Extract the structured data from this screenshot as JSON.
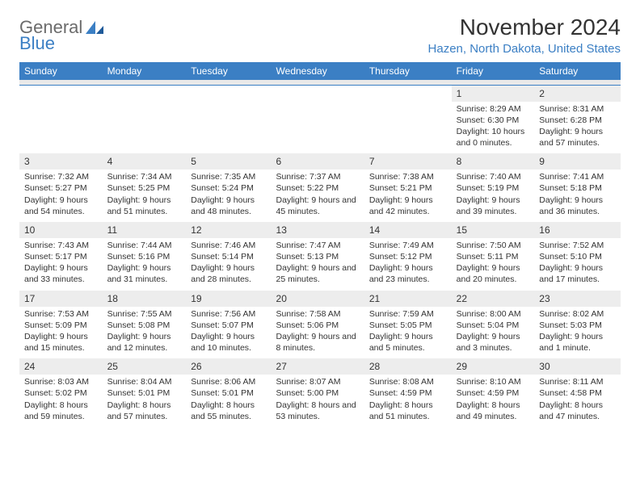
{
  "logo": {
    "text1": "General",
    "text2": "Blue"
  },
  "title": "November 2024",
  "location": "Hazen, North Dakota, United States",
  "colors": {
    "brand_blue": "#3b7fc4",
    "grey_text": "#6b6b6b",
    "cell_header_bg": "#ededed",
    "background": "#ffffff"
  },
  "day_headers": [
    "Sunday",
    "Monday",
    "Tuesday",
    "Wednesday",
    "Thursday",
    "Friday",
    "Saturday"
  ],
  "weeks": [
    [
      null,
      null,
      null,
      null,
      null,
      {
        "n": "1",
        "sr": "Sunrise: 8:29 AM",
        "ss": "Sunset: 6:30 PM",
        "dl": "Daylight: 10 hours and 0 minutes."
      },
      {
        "n": "2",
        "sr": "Sunrise: 8:31 AM",
        "ss": "Sunset: 6:28 PM",
        "dl": "Daylight: 9 hours and 57 minutes."
      }
    ],
    [
      {
        "n": "3",
        "sr": "Sunrise: 7:32 AM",
        "ss": "Sunset: 5:27 PM",
        "dl": "Daylight: 9 hours and 54 minutes."
      },
      {
        "n": "4",
        "sr": "Sunrise: 7:34 AM",
        "ss": "Sunset: 5:25 PM",
        "dl": "Daylight: 9 hours and 51 minutes."
      },
      {
        "n": "5",
        "sr": "Sunrise: 7:35 AM",
        "ss": "Sunset: 5:24 PM",
        "dl": "Daylight: 9 hours and 48 minutes."
      },
      {
        "n": "6",
        "sr": "Sunrise: 7:37 AM",
        "ss": "Sunset: 5:22 PM",
        "dl": "Daylight: 9 hours and 45 minutes."
      },
      {
        "n": "7",
        "sr": "Sunrise: 7:38 AM",
        "ss": "Sunset: 5:21 PM",
        "dl": "Daylight: 9 hours and 42 minutes."
      },
      {
        "n": "8",
        "sr": "Sunrise: 7:40 AM",
        "ss": "Sunset: 5:19 PM",
        "dl": "Daylight: 9 hours and 39 minutes."
      },
      {
        "n": "9",
        "sr": "Sunrise: 7:41 AM",
        "ss": "Sunset: 5:18 PM",
        "dl": "Daylight: 9 hours and 36 minutes."
      }
    ],
    [
      {
        "n": "10",
        "sr": "Sunrise: 7:43 AM",
        "ss": "Sunset: 5:17 PM",
        "dl": "Daylight: 9 hours and 33 minutes."
      },
      {
        "n": "11",
        "sr": "Sunrise: 7:44 AM",
        "ss": "Sunset: 5:16 PM",
        "dl": "Daylight: 9 hours and 31 minutes."
      },
      {
        "n": "12",
        "sr": "Sunrise: 7:46 AM",
        "ss": "Sunset: 5:14 PM",
        "dl": "Daylight: 9 hours and 28 minutes."
      },
      {
        "n": "13",
        "sr": "Sunrise: 7:47 AM",
        "ss": "Sunset: 5:13 PM",
        "dl": "Daylight: 9 hours and 25 minutes."
      },
      {
        "n": "14",
        "sr": "Sunrise: 7:49 AM",
        "ss": "Sunset: 5:12 PM",
        "dl": "Daylight: 9 hours and 23 minutes."
      },
      {
        "n": "15",
        "sr": "Sunrise: 7:50 AM",
        "ss": "Sunset: 5:11 PM",
        "dl": "Daylight: 9 hours and 20 minutes."
      },
      {
        "n": "16",
        "sr": "Sunrise: 7:52 AM",
        "ss": "Sunset: 5:10 PM",
        "dl": "Daylight: 9 hours and 17 minutes."
      }
    ],
    [
      {
        "n": "17",
        "sr": "Sunrise: 7:53 AM",
        "ss": "Sunset: 5:09 PM",
        "dl": "Daylight: 9 hours and 15 minutes."
      },
      {
        "n": "18",
        "sr": "Sunrise: 7:55 AM",
        "ss": "Sunset: 5:08 PM",
        "dl": "Daylight: 9 hours and 12 minutes."
      },
      {
        "n": "19",
        "sr": "Sunrise: 7:56 AM",
        "ss": "Sunset: 5:07 PM",
        "dl": "Daylight: 9 hours and 10 minutes."
      },
      {
        "n": "20",
        "sr": "Sunrise: 7:58 AM",
        "ss": "Sunset: 5:06 PM",
        "dl": "Daylight: 9 hours and 8 minutes."
      },
      {
        "n": "21",
        "sr": "Sunrise: 7:59 AM",
        "ss": "Sunset: 5:05 PM",
        "dl": "Daylight: 9 hours and 5 minutes."
      },
      {
        "n": "22",
        "sr": "Sunrise: 8:00 AM",
        "ss": "Sunset: 5:04 PM",
        "dl": "Daylight: 9 hours and 3 minutes."
      },
      {
        "n": "23",
        "sr": "Sunrise: 8:02 AM",
        "ss": "Sunset: 5:03 PM",
        "dl": "Daylight: 9 hours and 1 minute."
      }
    ],
    [
      {
        "n": "24",
        "sr": "Sunrise: 8:03 AM",
        "ss": "Sunset: 5:02 PM",
        "dl": "Daylight: 8 hours and 59 minutes."
      },
      {
        "n": "25",
        "sr": "Sunrise: 8:04 AM",
        "ss": "Sunset: 5:01 PM",
        "dl": "Daylight: 8 hours and 57 minutes."
      },
      {
        "n": "26",
        "sr": "Sunrise: 8:06 AM",
        "ss": "Sunset: 5:01 PM",
        "dl": "Daylight: 8 hours and 55 minutes."
      },
      {
        "n": "27",
        "sr": "Sunrise: 8:07 AM",
        "ss": "Sunset: 5:00 PM",
        "dl": "Daylight: 8 hours and 53 minutes."
      },
      {
        "n": "28",
        "sr": "Sunrise: 8:08 AM",
        "ss": "Sunset: 4:59 PM",
        "dl": "Daylight: 8 hours and 51 minutes."
      },
      {
        "n": "29",
        "sr": "Sunrise: 8:10 AM",
        "ss": "Sunset: 4:59 PM",
        "dl": "Daylight: 8 hours and 49 minutes."
      },
      {
        "n": "30",
        "sr": "Sunrise: 8:11 AM",
        "ss": "Sunset: 4:58 PM",
        "dl": "Daylight: 8 hours and 47 minutes."
      }
    ]
  ]
}
